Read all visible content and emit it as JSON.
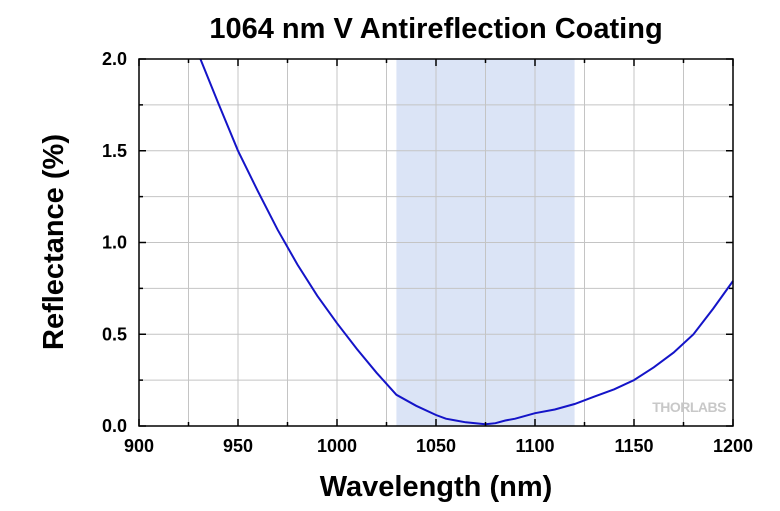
{
  "chart_data": {
    "type": "line",
    "title": "1064 nm V Antireflection Coating",
    "xlabel": "Wavelength (nm)",
    "ylabel": "Reflectance (%)",
    "xlim": [
      900,
      1200
    ],
    "ylim": [
      0,
      2.0
    ],
    "xticks": [
      900,
      950,
      1000,
      1050,
      1100,
      1150,
      1200
    ],
    "xtick_labels": [
      "900",
      "950",
      "1000",
      "1050",
      "1100",
      "1150",
      "1200"
    ],
    "yticks": [
      0,
      0.5,
      1.0,
      1.5,
      2.0
    ],
    "ytick_labels": [
      "0.0",
      "0.5",
      "1.0",
      "1.5",
      "2.0"
    ],
    "grid": true,
    "grid_step_x": 25,
    "grid_step_y": 0.25,
    "highlight_band": {
      "x_start": 1030,
      "x_end": 1120,
      "color": "#dbe4f6"
    },
    "series": [
      {
        "color": "#1414c8",
        "x": [
          931,
          940,
          950,
          960,
          970,
          980,
          990,
          1000,
          1010,
          1020,
          1030,
          1040,
          1050,
          1055,
          1060,
          1065,
          1070,
          1075,
          1080,
          1085,
          1090,
          1095,
          1100,
          1110,
          1120,
          1130,
          1140,
          1150,
          1160,
          1170,
          1180,
          1190,
          1200
        ],
        "y": [
          2.0,
          1.76,
          1.5,
          1.28,
          1.07,
          0.88,
          0.71,
          0.56,
          0.42,
          0.29,
          0.17,
          0.11,
          0.06,
          0.04,
          0.03,
          0.02,
          0.015,
          0.01,
          0.015,
          0.03,
          0.04,
          0.055,
          0.07,
          0.09,
          0.12,
          0.16,
          0.2,
          0.25,
          0.32,
          0.4,
          0.5,
          0.64,
          0.79
        ]
      }
    ]
  },
  "watermark": "THORLABS"
}
